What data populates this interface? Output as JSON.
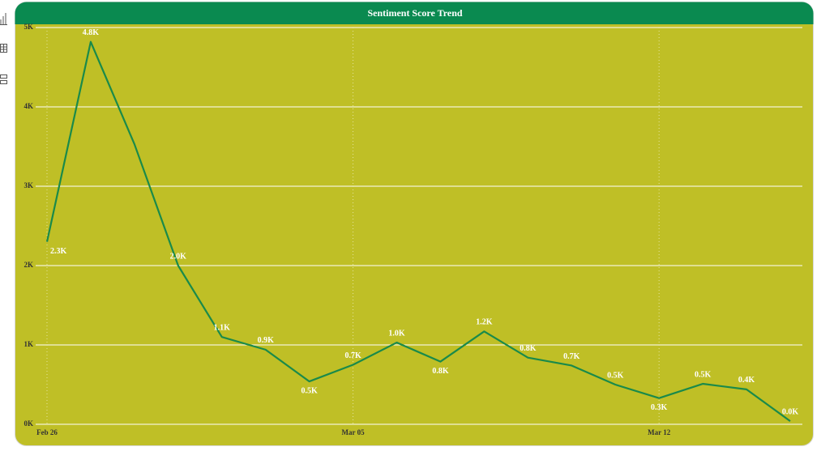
{
  "chart_data": {
    "type": "line",
    "title": "Sentiment Score Trend",
    "categories": [
      "Feb 26",
      null,
      null,
      null,
      null,
      null,
      null,
      "Mar 05",
      null,
      null,
      null,
      null,
      null,
      null,
      "Mar 12",
      null,
      null,
      null
    ],
    "series": [
      {
        "name": "Sentiment Score",
        "color": "#1a8a4a",
        "values": [
          2300,
          4820,
          3530,
          2000,
          1100,
          940,
          540,
          750,
          1030,
          790,
          1170,
          840,
          740,
          500,
          330,
          510,
          440,
          40
        ],
        "value_labels": [
          "2.3K",
          "4.8K",
          null,
          "2.0K",
          "1.1K",
          "0.9K",
          "0.5K",
          "0.7K",
          "1.0K",
          "0.8K",
          "1.2K",
          "0.8K",
          "0.7K",
          "0.5K",
          "0.3K",
          "0.5K",
          "0.4K",
          "0.0K"
        ]
      }
    ],
    "ylim": [
      0,
      5000
    ],
    "yticks": [
      {
        "value": 0,
        "label": "0K"
      },
      {
        "value": 1000,
        "label": "1K"
      },
      {
        "value": 2000,
        "label": "2K"
      },
      {
        "value": 3000,
        "label": "3K"
      },
      {
        "value": 4000,
        "label": "4K"
      },
      {
        "value": 5000,
        "label": "5K"
      }
    ],
    "grid": true
  }
}
